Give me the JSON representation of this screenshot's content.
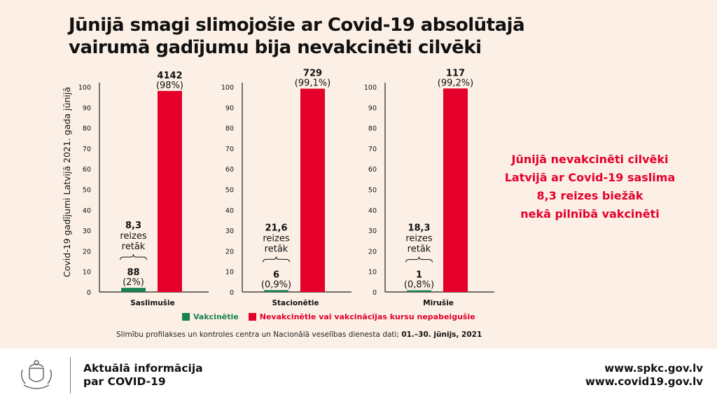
{
  "title_line1": "Jūnijā smagi slimojošie ar Covid-19 absolūtajā",
  "title_line2": "vairumā gadījumu bija nevakcinēti cilvēki",
  "colors": {
    "background": "#fcf0e6",
    "vaccinated": "#17814f",
    "unvaccinated": "#e4002b"
  },
  "chart_data": {
    "type": "bar",
    "ylabel": "Covid-19 gadījumi Latvijā 2021. gada jūnijā",
    "ylim": [
      0,
      100
    ],
    "yticks": [
      "0",
      "10",
      "20",
      "30",
      "40",
      "50",
      "60",
      "70",
      "80",
      "90",
      "100"
    ],
    "grid": false,
    "legend_position": "bottom",
    "categories": [
      "Saslimušie",
      "Stacionētie",
      "Mirušie"
    ],
    "series": [
      {
        "name": "Vakcinētie",
        "values": [
          2,
          0.9,
          0.8
        ],
        "counts": [
          "88",
          "6",
          "1"
        ],
        "labels": [
          "(2%)",
          "(0,9%)",
          "(0,8%)"
        ]
      },
      {
        "name": "Nevakcinētie vai vakcinācijas kursu nepabeigušie",
        "values": [
          98,
          99.1,
          99.2
        ],
        "counts": [
          "4142",
          "729",
          "117"
        ],
        "labels": [
          "(98%)",
          "(99,1%)",
          "(99,2%)"
        ]
      }
    ],
    "annotations": [
      {
        "factor": "8,3",
        "line1": "reizes",
        "line2": "retāk"
      },
      {
        "factor": "21,6",
        "line1": "reizes",
        "line2": "retāk"
      },
      {
        "factor": "18,3",
        "line1": "reizes",
        "line2": "retāk"
      }
    ]
  },
  "side_text": [
    "Jūnijā nevakcinēti cilvēki",
    "Latvijā ar Covid-19 saslima",
    "8,3 reizes biežāk",
    "nekā pilnībā vakcinēti"
  ],
  "source_text": "Slimību profilakses un kontroles centra un Nacionālā veselības dienesta dati;",
  "source_date": "01.–30. jūnijs, 2021",
  "footer": {
    "info_line1": "Aktuālā informācija",
    "info_line2": "par COVID-19",
    "url1": "www.spkc.gov.lv",
    "url2": "www.covid19.gov.lv"
  }
}
